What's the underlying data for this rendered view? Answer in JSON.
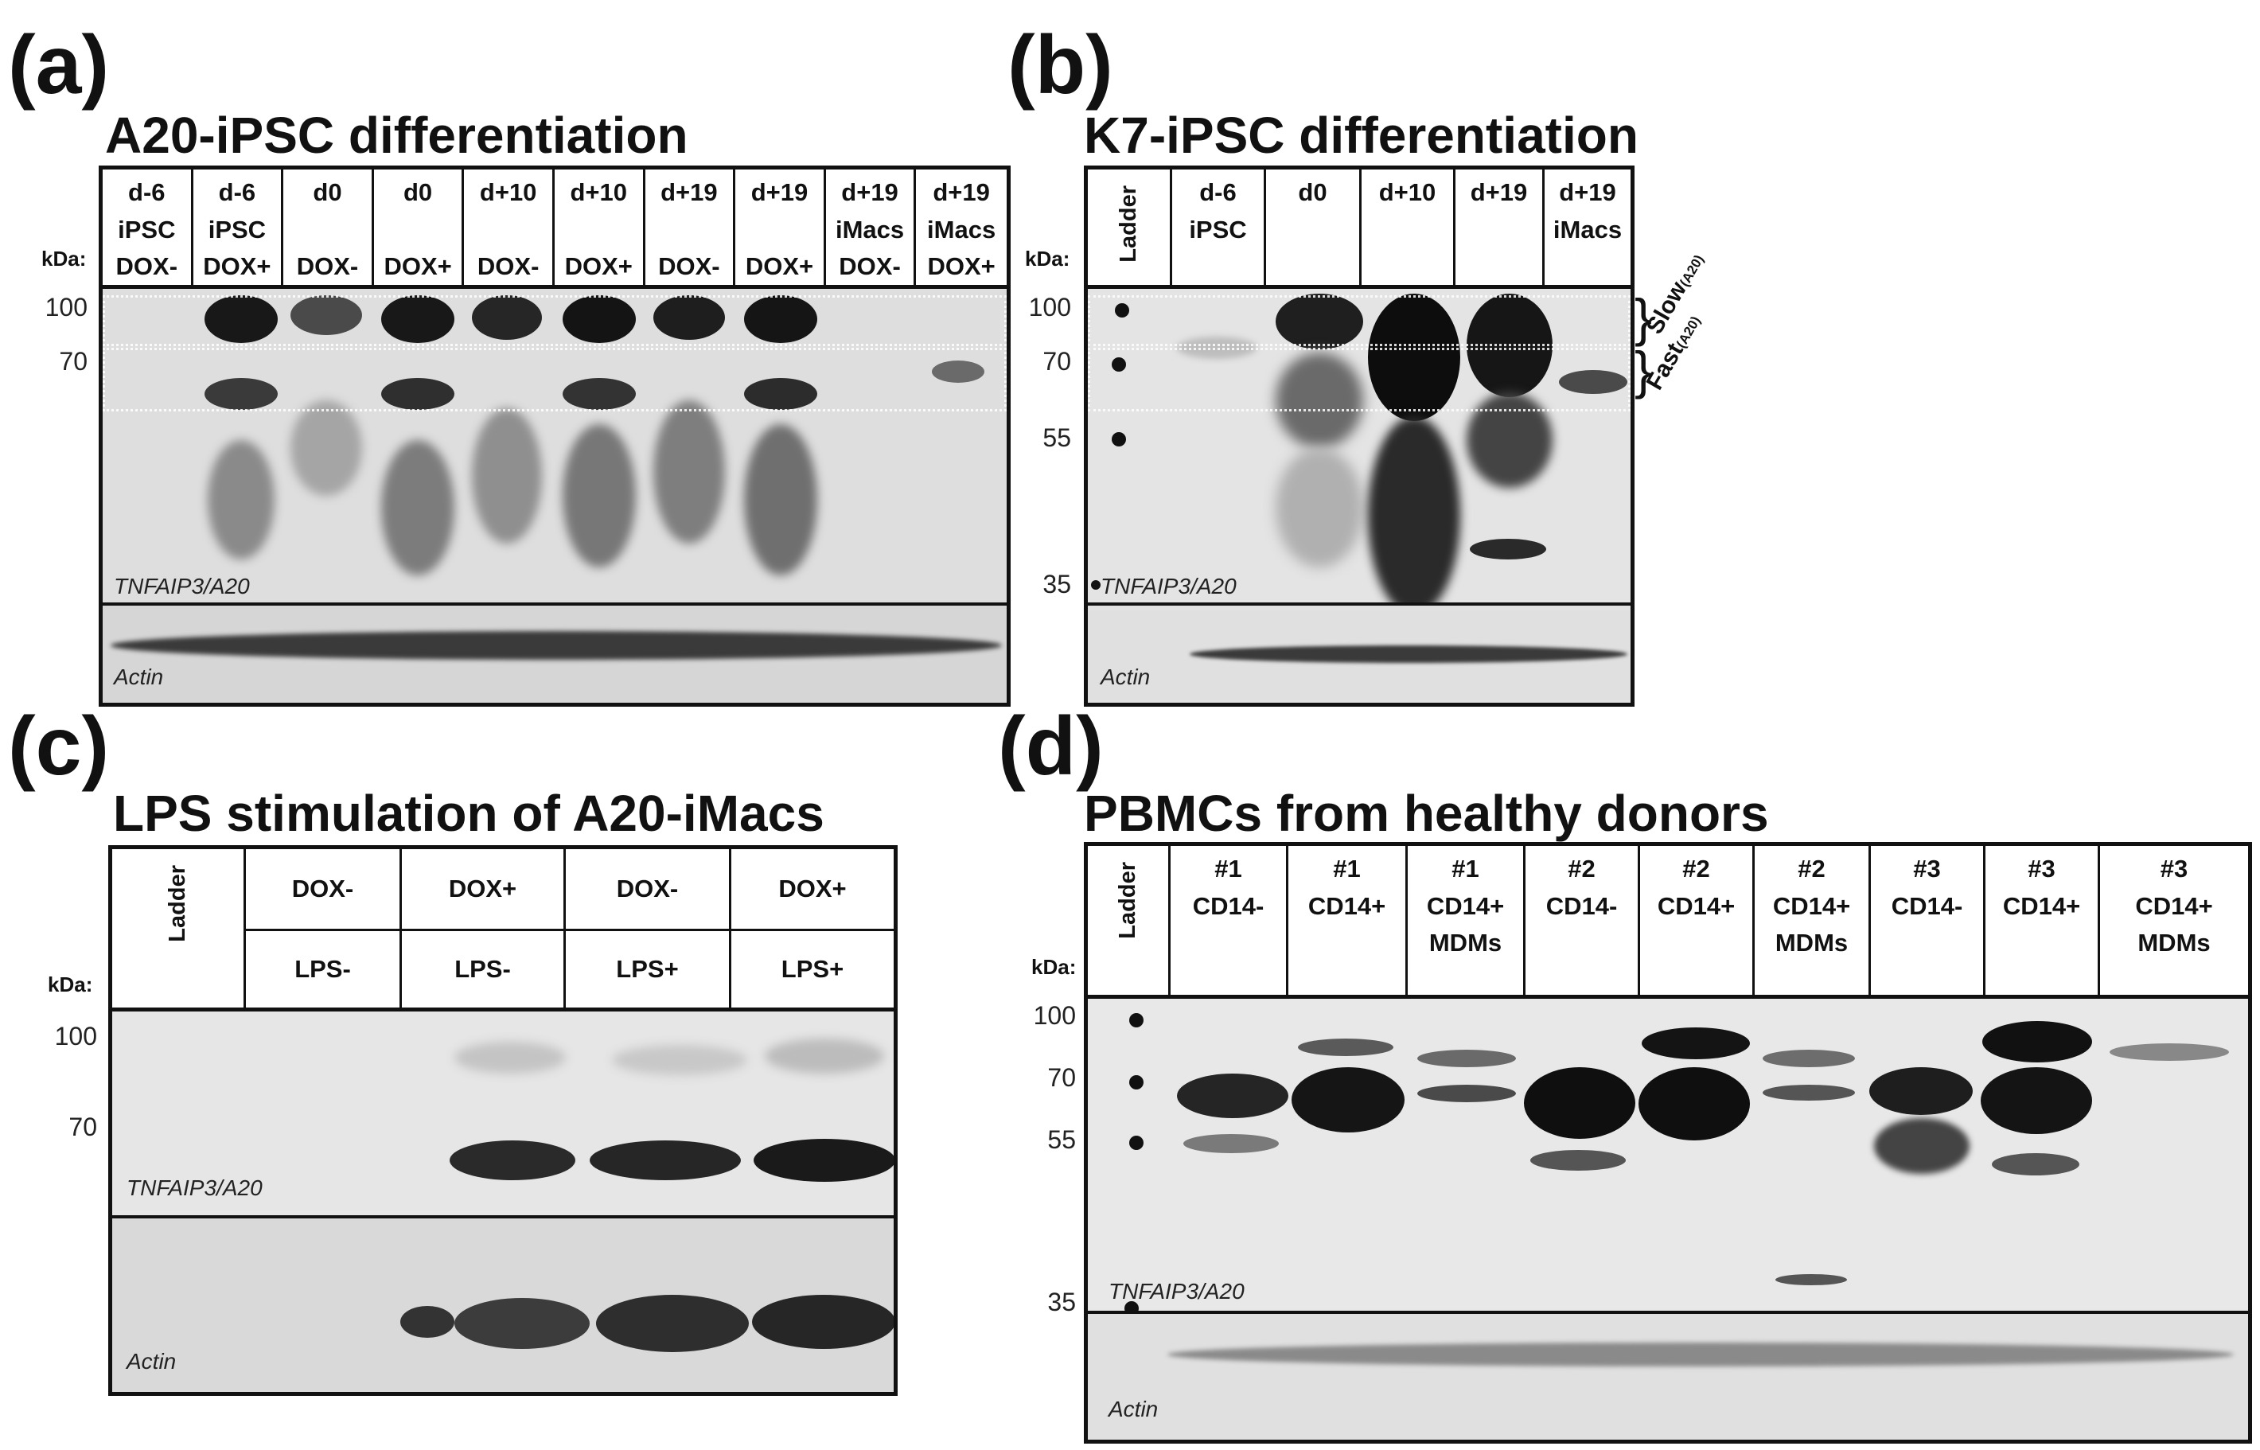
{
  "panel_a": {
    "letter": "(a)",
    "title": "A20-iPSC differentiation",
    "kda_label": "kDa:",
    "lanes": [
      {
        "l1": "d-6",
        "l2": "iPSC",
        "l3": "DOX-"
      },
      {
        "l1": "d-6",
        "l2": "iPSC",
        "l3": "DOX+"
      },
      {
        "l1": "d0",
        "l2": "",
        "l3": "DOX-"
      },
      {
        "l1": "d0",
        "l2": "",
        "l3": "DOX+"
      },
      {
        "l1": "d+10",
        "l2": "",
        "l3": "DOX-"
      },
      {
        "l1": "d+10",
        "l2": "",
        "l3": "DOX+"
      },
      {
        "l1": "d+19",
        "l2": "",
        "l3": "DOX-"
      },
      {
        "l1": "d+19",
        "l2": "",
        "l3": "DOX+"
      },
      {
        "l1": "d+19",
        "l2": "iMacs",
        "l3": "DOX-"
      },
      {
        "l1": "d+19",
        "l2": "iMacs",
        "l3": "DOX+"
      }
    ],
    "markers": [
      "100",
      "70"
    ],
    "protein_label": "TNFAIP3/A20",
    "loading_label": "Actin"
  },
  "panel_b": {
    "letter": "(b)",
    "title": "K7-iPSC differentiation",
    "kda_label": "kDa:",
    "ladder_label": "Ladder",
    "lanes": [
      {
        "l1": "d-6",
        "l2": "iPSC"
      },
      {
        "l1": "d0",
        "l2": ""
      },
      {
        "l1": "d+10",
        "l2": ""
      },
      {
        "l1": "d+19",
        "l2": ""
      },
      {
        "l1": "d+19",
        "l2": "iMacs"
      }
    ],
    "markers": [
      "100",
      "70",
      "55",
      "35"
    ],
    "protein_label": "TNFAIP3/A20",
    "loading_label": "Actin",
    "slow_label": "Slow",
    "slow_sub": "(A20)",
    "fast_label": "Fast",
    "fast_sub": "(A20)"
  },
  "panel_c": {
    "letter": "(c)",
    "title": "LPS stimulation of A20-iMacs",
    "kda_label": "kDa:",
    "ladder_label": "Ladder",
    "lanes": [
      {
        "dox": "DOX-",
        "lps": "LPS-"
      },
      {
        "dox": "DOX+",
        "lps": "LPS-"
      },
      {
        "dox": "DOX-",
        "lps": "LPS+"
      },
      {
        "dox": "DOX+",
        "lps": "LPS+"
      }
    ],
    "markers": [
      "100",
      "70"
    ],
    "protein_label": "TNFAIP3/A20",
    "loading_label": "Actin"
  },
  "panel_d": {
    "letter": "(d)",
    "title": "PBMCs from healthy donors",
    "kda_label": "kDa:",
    "ladder_label": "Ladder",
    "lanes": [
      {
        "l1": "#1",
        "l2": "CD14-",
        "l3": ""
      },
      {
        "l1": "#1",
        "l2": "CD14+",
        "l3": ""
      },
      {
        "l1": "#1",
        "l2": "CD14+",
        "l3": "MDMs"
      },
      {
        "l1": "#2",
        "l2": "CD14-",
        "l3": ""
      },
      {
        "l1": "#2",
        "l2": "CD14+",
        "l3": ""
      },
      {
        "l1": "#2",
        "l2": "CD14+",
        "l3": "MDMs"
      },
      {
        "l1": "#3",
        "l2": "CD14-",
        "l3": ""
      },
      {
        "l1": "#3",
        "l2": "CD14+",
        "l3": ""
      },
      {
        "l1": "#3",
        "l2": "CD14+",
        "l3": "MDMs"
      }
    ],
    "markers": [
      "100",
      "70",
      "55",
      "35"
    ],
    "protein_label": "TNFAIP3/A20",
    "loading_label": "Actin"
  }
}
